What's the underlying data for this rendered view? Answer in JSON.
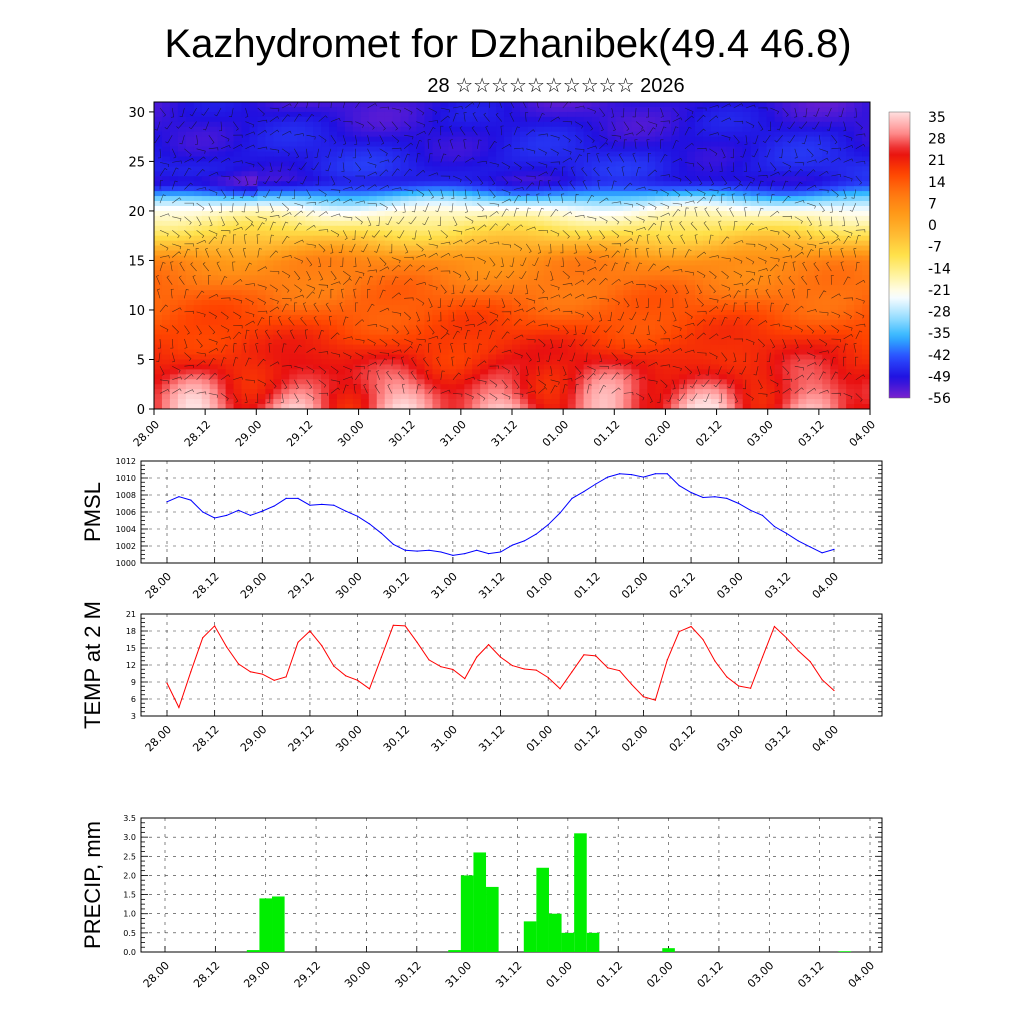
{
  "header": {
    "title": "Kazhydromet for Dzhanibek(49.4 46.8)",
    "subtitle": "28 ☆☆☆☆☆☆☆☆☆☆ 2026"
  },
  "time_labels": [
    "28.00",
    "28.12",
    "29.00",
    "29.12",
    "30.00",
    "30.12",
    "31.00",
    "31.12",
    "01.00",
    "01.12",
    "02.00",
    "02.12",
    "03.00",
    "03.12",
    "04.00"
  ],
  "chart_data": [
    {
      "type": "heatmap",
      "name": "vertical-temperature-section",
      "y_ticks": [
        "0",
        "5",
        "10",
        "15",
        "20",
        "25",
        "30"
      ],
      "ylim": [
        0,
        31
      ],
      "colorbar": {
        "labels": [
          "35",
          "28",
          "21",
          "14",
          "7",
          "0",
          "-7",
          "-14",
          "-21",
          "-28",
          "-35",
          "-42",
          "-49",
          "-56"
        ],
        "range": [
          -60,
          38
        ],
        "colors": [
          "#7a22ce",
          "#2010e0",
          "#2a4cff",
          "#2fb6ff",
          "#9fe0ff",
          "#ffffff",
          "#fff3a0",
          "#ffe14a",
          "#ffbb33",
          "#ff9a18",
          "#ff7711",
          "#ff4400",
          "#e81010",
          "#ff9090",
          "#ffe0e0"
        ]
      }
    },
    {
      "type": "line",
      "name": "pmsl",
      "ylabel": "PMSL",
      "ylim": [
        1000,
        1012
      ],
      "y_ticks": [
        "1000",
        "1002",
        "1004",
        "1006",
        "1008",
        "1010",
        "1012"
      ],
      "color": "#0000ff",
      "values": [
        1007.2,
        1007.8,
        1007.4,
        1006.0,
        1005.3,
        1005.6,
        1006.2,
        1005.6,
        1006.1,
        1006.7,
        1007.6,
        1007.6,
        1006.8,
        1006.9,
        1006.8,
        1006.1,
        1005.5,
        1004.6,
        1003.5,
        1002.2,
        1001.5,
        1001.4,
        1001.5,
        1001.3,
        1000.9,
        1001.1,
        1001.5,
        1001.1,
        1001.3,
        1002.1,
        1002.6,
        1003.4,
        1004.5,
        1005.9,
        1007.6,
        1008.4,
        1009.3,
        1010.1,
        1010.5,
        1010.4,
        1010.1,
        1010.5,
        1010.5,
        1009.1,
        1008.3,
        1007.7,
        1007.8,
        1007.6,
        1007.0,
        1006.2,
        1005.6,
        1004.3,
        1003.5,
        1002.6,
        1001.9,
        1001.2,
        1001.6
      ]
    },
    {
      "type": "line",
      "name": "temp-2m",
      "ylabel": "TEMP at 2 M",
      "ylim": [
        3,
        21
      ],
      "y_ticks": [
        "3",
        "6",
        "9",
        "12",
        "15",
        "18",
        "21"
      ],
      "color": "#ff0000",
      "values": [
        8.8,
        4.5,
        10.8,
        16.8,
        18.9,
        15.2,
        12.2,
        10.8,
        10.4,
        9.3,
        9.9,
        16.0,
        18.0,
        15.4,
        11.8,
        10.1,
        9.3,
        7.8,
        13.4,
        19.0,
        18.9,
        16.0,
        12.9,
        11.7,
        11.2,
        9.6,
        13.4,
        15.6,
        13.4,
        11.9,
        11.3,
        11.1,
        9.8,
        7.8,
        10.8,
        13.8,
        13.6,
        11.5,
        11.0,
        8.6,
        6.4,
        5.8,
        12.9,
        17.9,
        18.8,
        16.5,
        12.7,
        9.9,
        8.3,
        7.9,
        13.4,
        18.8,
        16.8,
        14.5,
        12.6,
        9.4,
        7.5
      ]
    },
    {
      "type": "bar",
      "name": "precip",
      "ylabel": "PRECIP, mm",
      "ylim": [
        0,
        3.5
      ],
      "y_ticks": [
        "0.0",
        "0.5",
        "1.0",
        "1.5",
        "2.0",
        "2.5",
        "3.0",
        "3.5"
      ],
      "color": "#00ee00",
      "values": [
        0,
        0,
        0,
        0,
        0,
        0,
        0,
        0.05,
        1.4,
        1.45,
        0,
        0,
        0,
        0,
        0,
        0,
        0,
        0,
        0,
        0,
        0,
        0,
        0,
        0.05,
        2.0,
        2.6,
        1.7,
        0,
        0,
        0.8,
        2.2,
        1.0,
        0.5,
        3.1,
        0.5,
        0,
        0,
        0,
        0,
        0,
        0.1,
        0,
        0,
        0,
        0,
        0,
        0,
        0,
        0,
        0,
        0,
        0,
        0,
        0,
        0.02,
        0,
        0
      ]
    }
  ]
}
